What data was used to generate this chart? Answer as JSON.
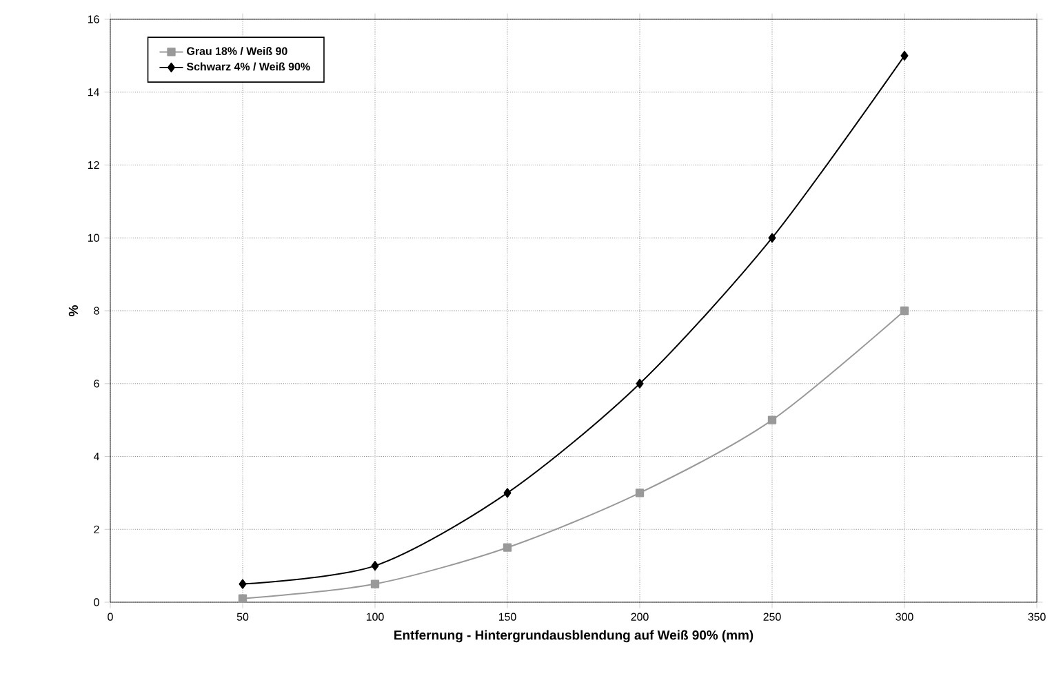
{
  "chart_data": {
    "type": "line",
    "xlabel": "Entfernung - Hintergrundausblendung auf Weiß 90% (mm)",
    "ylabel": "%",
    "x": [
      50,
      100,
      150,
      200,
      250,
      300
    ],
    "series": [
      {
        "name": "Grau 18% / Weiß 90",
        "color": "#999999",
        "marker": "square",
        "values": [
          0.1,
          0.5,
          1.5,
          3,
          5,
          8
        ]
      },
      {
        "name": "Schwarz 4% / Weiß 90%",
        "color": "#000000",
        "marker": "diamond",
        "values": [
          0.5,
          1,
          3,
          6,
          10,
          15
        ]
      }
    ],
    "xlim": [
      0,
      350
    ],
    "xticks": [
      0,
      50,
      100,
      150,
      200,
      250,
      300,
      350
    ],
    "ylim": [
      0,
      16
    ],
    "yticks": [
      0,
      2,
      4,
      6,
      8,
      10,
      12,
      14,
      16
    ],
    "grid": true,
    "legend": "top left",
    "line_style": "solid"
  }
}
